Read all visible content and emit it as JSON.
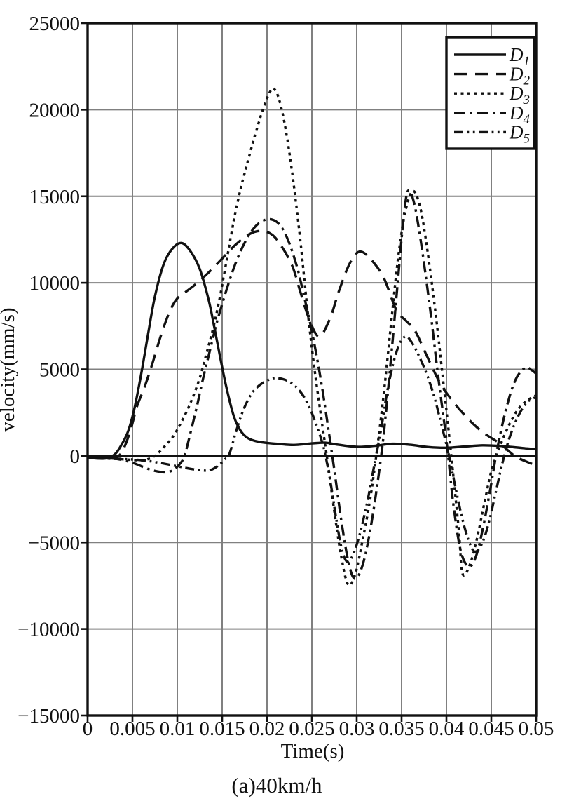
{
  "figure": {
    "background": "#ffffff",
    "accent_color": "#111111",
    "grid_color": "#808080"
  },
  "chart_data": {
    "type": "line",
    "title": "",
    "xlabel": "Time(s)",
    "ylabel": "velocity(mm/s)",
    "caption": "(a)40km/h",
    "xlim": [
      0,
      0.05
    ],
    "ylim": [
      -15000,
      25000
    ],
    "grid": true,
    "legend_position": "top-right",
    "xticks": [
      {
        "value": 0,
        "label": "0"
      },
      {
        "value": 0.005,
        "label": "0.005"
      },
      {
        "value": 0.01,
        "label": "0.01"
      },
      {
        "value": 0.015,
        "label": "0.015"
      },
      {
        "value": 0.02,
        "label": "0.02"
      },
      {
        "value": 0.025,
        "label": "0.025"
      },
      {
        "value": 0.03,
        "label": "0.03"
      },
      {
        "value": 0.035,
        "label": "0.035"
      },
      {
        "value": 0.04,
        "label": "0.04"
      },
      {
        "value": 0.045,
        "label": "0.045"
      },
      {
        "value": 0.05,
        "label": "0.05"
      }
    ],
    "yticks": [
      {
        "value": 25000,
        "label": "25000"
      },
      {
        "value": 20000,
        "label": "20000"
      },
      {
        "value": 15000,
        "label": "15000"
      },
      {
        "value": 10000,
        "label": "10000"
      },
      {
        "value": 5000,
        "label": "5000"
      },
      {
        "value": 0,
        "label": "0"
      },
      {
        "value": -5000,
        "label": "−5000"
      },
      {
        "value": -10000,
        "label": "−10000"
      },
      {
        "value": -15000,
        "label": "−15000"
      }
    ],
    "series": [
      {
        "name": "D1",
        "name_main": "D",
        "name_sub": "1",
        "style": "solid",
        "dash": "none",
        "color": "#111111",
        "points": [
          [
            0,
            -100
          ],
          [
            0.001,
            -150
          ],
          [
            0.002,
            -150
          ],
          [
            0.0028,
            0
          ],
          [
            0.0035,
            400
          ],
          [
            0.0045,
            1400
          ],
          [
            0.0052,
            2700
          ],
          [
            0.006,
            4800
          ],
          [
            0.0068,
            7200
          ],
          [
            0.0075,
            9200
          ],
          [
            0.0085,
            11100
          ],
          [
            0.0095,
            12000
          ],
          [
            0.0105,
            12300
          ],
          [
            0.0115,
            11800
          ],
          [
            0.0125,
            10800
          ],
          [
            0.0135,
            9000
          ],
          [
            0.0141,
            7500
          ],
          [
            0.0147,
            5900
          ],
          [
            0.0155,
            3900
          ],
          [
            0.0163,
            2300
          ],
          [
            0.017,
            1500
          ],
          [
            0.0178,
            1050
          ],
          [
            0.019,
            820
          ],
          [
            0.021,
            700
          ],
          [
            0.023,
            630
          ],
          [
            0.025,
            720
          ],
          [
            0.0265,
            760
          ],
          [
            0.028,
            640
          ],
          [
            0.03,
            520
          ],
          [
            0.032,
            580
          ],
          [
            0.034,
            700
          ],
          [
            0.036,
            640
          ],
          [
            0.038,
            510
          ],
          [
            0.04,
            470
          ],
          [
            0.042,
            540
          ],
          [
            0.044,
            610
          ],
          [
            0.0458,
            580
          ],
          [
            0.0475,
            500
          ],
          [
            0.049,
            430
          ],
          [
            0.05,
            380
          ]
        ]
      },
      {
        "name": "D2",
        "name_main": "D",
        "name_sub": "2",
        "style": "long-dash",
        "dash": "19 11",
        "color": "#111111",
        "points": [
          [
            0,
            -120
          ],
          [
            0.002,
            -160
          ],
          [
            0.003,
            -100
          ],
          [
            0.0038,
            200
          ],
          [
            0.0047,
            1340
          ],
          [
            0.0055,
            2850
          ],
          [
            0.0063,
            3900
          ],
          [
            0.0072,
            5300
          ],
          [
            0.0082,
            7000
          ],
          [
            0.0092,
            8400
          ],
          [
            0.01,
            9100
          ],
          [
            0.011,
            9500
          ],
          [
            0.012,
            9900
          ],
          [
            0.0135,
            10600
          ],
          [
            0.015,
            11400
          ],
          [
            0.0165,
            12200
          ],
          [
            0.018,
            12800
          ],
          [
            0.0193,
            13000
          ],
          [
            0.0205,
            12800
          ],
          [
            0.0215,
            12200
          ],
          [
            0.0228,
            11000
          ],
          [
            0.0237,
            9500
          ],
          [
            0.0247,
            7900
          ],
          [
            0.0258,
            6900
          ],
          [
            0.027,
            7900
          ],
          [
            0.028,
            9500
          ],
          [
            0.0292,
            11100
          ],
          [
            0.0303,
            11800
          ],
          [
            0.0315,
            11400
          ],
          [
            0.033,
            10300
          ],
          [
            0.0344,
            8450
          ],
          [
            0.0355,
            7800
          ],
          [
            0.0365,
            7230
          ],
          [
            0.0378,
            5800
          ],
          [
            0.0393,
            4200
          ],
          [
            0.0408,
            3100
          ],
          [
            0.0425,
            2100
          ],
          [
            0.0441,
            1350
          ],
          [
            0.046,
            700
          ],
          [
            0.0476,
            0
          ],
          [
            0.049,
            -350
          ],
          [
            0.05,
            -550
          ]
        ]
      },
      {
        "name": "D3",
        "name_main": "D",
        "name_sub": "3",
        "style": "dotted",
        "dash": "4 5.5",
        "color": "#111111",
        "points": [
          [
            0,
            -100
          ],
          [
            0.002,
            -150
          ],
          [
            0.004,
            -200
          ],
          [
            0.0055,
            -250
          ],
          [
            0.0065,
            -220
          ],
          [
            0.0075,
            0
          ],
          [
            0.0085,
            500
          ],
          [
            0.0095,
            1100
          ],
          [
            0.0105,
            2000
          ],
          [
            0.0115,
            3100
          ],
          [
            0.0125,
            4500
          ],
          [
            0.0133,
            6000
          ],
          [
            0.0141,
            7600
          ],
          [
            0.0148,
            9300
          ],
          [
            0.0156,
            11600
          ],
          [
            0.0163,
            13600
          ],
          [
            0.017,
            15300
          ],
          [
            0.0178,
            16900
          ],
          [
            0.0187,
            18600
          ],
          [
            0.0196,
            20100
          ],
          [
            0.0203,
            21000
          ],
          [
            0.0208,
            21200
          ],
          [
            0.0214,
            20500
          ],
          [
            0.0221,
            18800
          ],
          [
            0.0229,
            16000
          ],
          [
            0.0237,
            12500
          ],
          [
            0.0245,
            8500
          ],
          [
            0.0253,
            5000
          ],
          [
            0.0261,
            2000
          ],
          [
            0.0268,
            -500
          ],
          [
            0.0275,
            -3200
          ],
          [
            0.0282,
            -5600
          ],
          [
            0.029,
            -7400
          ],
          [
            0.0298,
            -6900
          ],
          [
            0.0306,
            -5000
          ],
          [
            0.0315,
            -2500
          ],
          [
            0.0323,
            500
          ],
          [
            0.0331,
            4000
          ],
          [
            0.0339,
            8000
          ],
          [
            0.0347,
            11800
          ],
          [
            0.0355,
            14300
          ],
          [
            0.0363,
            15300
          ],
          [
            0.0371,
            14300
          ],
          [
            0.0379,
            11800
          ],
          [
            0.0388,
            8200
          ],
          [
            0.0396,
            4500
          ],
          [
            0.0403,
            1200
          ],
          [
            0.0409,
            -1800
          ],
          [
            0.0414,
            -4400
          ],
          [
            0.0418,
            -6800
          ],
          [
            0.0426,
            -6300
          ],
          [
            0.0434,
            -4800
          ],
          [
            0.0442,
            -2800
          ],
          [
            0.045,
            -900
          ],
          [
            0.046,
            600
          ],
          [
            0.047,
            1800
          ],
          [
            0.048,
            2700
          ],
          [
            0.049,
            3200
          ],
          [
            0.05,
            3500
          ]
        ]
      },
      {
        "name": "D4",
        "name_main": "D",
        "name_sub": "4",
        "style": "dash-dot",
        "dash": "16 6.5 3.5 6.5",
        "color": "#111111",
        "points": [
          [
            0,
            -100
          ],
          [
            0.002,
            -130
          ],
          [
            0.0035,
            -200
          ],
          [
            0.005,
            -400
          ],
          [
            0.006,
            -600
          ],
          [
            0.007,
            -800
          ],
          [
            0.008,
            -920
          ],
          [
            0.0088,
            -950
          ],
          [
            0.0096,
            -800
          ],
          [
            0.0103,
            -450
          ],
          [
            0.0108,
            0
          ],
          [
            0.0115,
            1400
          ],
          [
            0.0122,
            2900
          ],
          [
            0.0128,
            4300
          ],
          [
            0.0135,
            5800
          ],
          [
            0.0142,
            7300
          ],
          [
            0.0149,
            8600
          ],
          [
            0.0158,
            10100
          ],
          [
            0.0167,
            11400
          ],
          [
            0.0176,
            12400
          ],
          [
            0.0186,
            13200
          ],
          [
            0.0196,
            13600
          ],
          [
            0.0206,
            13650
          ],
          [
            0.0215,
            13300
          ],
          [
            0.0224,
            12400
          ],
          [
            0.0233,
            11000
          ],
          [
            0.0239,
            9750
          ],
          [
            0.025,
            7200
          ],
          [
            0.026,
            4400
          ],
          [
            0.0268,
            1700
          ],
          [
            0.0275,
            -800
          ],
          [
            0.0283,
            -3800
          ],
          [
            0.0291,
            -6200
          ],
          [
            0.0298,
            -7100
          ],
          [
            0.0306,
            -6400
          ],
          [
            0.0314,
            -4600
          ],
          [
            0.0322,
            -2000
          ],
          [
            0.033,
            1200
          ],
          [
            0.0338,
            5500
          ],
          [
            0.0346,
            10200
          ],
          [
            0.0352,
            13600
          ],
          [
            0.0357,
            15300
          ],
          [
            0.0364,
            14600
          ],
          [
            0.0372,
            12200
          ],
          [
            0.0382,
            8400
          ],
          [
            0.0391,
            4500
          ],
          [
            0.04,
            900
          ],
          [
            0.0408,
            -2900
          ],
          [
            0.0416,
            -5500
          ],
          [
            0.0425,
            -6400
          ],
          [
            0.0433,
            -5800
          ],
          [
            0.0441,
            -4100
          ],
          [
            0.0449,
            -1900
          ],
          [
            0.0457,
            500
          ],
          [
            0.0467,
            2800
          ],
          [
            0.0477,
            4400
          ],
          [
            0.0488,
            5100
          ],
          [
            0.0495,
            4950
          ],
          [
            0.05,
            4750
          ]
        ]
      },
      {
        "name": "D5",
        "name_main": "D",
        "name_sub": "5",
        "style": "dash-dot-dot",
        "dash": "13 5.5 2.8 5.5 2.8 5.5",
        "color": "#111111",
        "points": [
          [
            0,
            -100
          ],
          [
            0.002,
            -130
          ],
          [
            0.004,
            -180
          ],
          [
            0.006,
            -250
          ],
          [
            0.008,
            -400
          ],
          [
            0.01,
            -600
          ],
          [
            0.0115,
            -750
          ],
          [
            0.013,
            -850
          ],
          [
            0.0138,
            -800
          ],
          [
            0.0146,
            -550
          ],
          [
            0.0153,
            -200
          ],
          [
            0.0158,
            100
          ],
          [
            0.0166,
            1500
          ],
          [
            0.0174,
            2700
          ],
          [
            0.0183,
            3600
          ],
          [
            0.0192,
            4100
          ],
          [
            0.0202,
            4400
          ],
          [
            0.021,
            4500
          ],
          [
            0.022,
            4400
          ],
          [
            0.023,
            4100
          ],
          [
            0.024,
            3500
          ],
          [
            0.0249,
            2600
          ],
          [
            0.0257,
            1500
          ],
          [
            0.0264,
            300
          ],
          [
            0.0271,
            -1600
          ],
          [
            0.0277,
            -3600
          ],
          [
            0.0283,
            -5300
          ],
          [
            0.0289,
            -6100
          ],
          [
            0.0296,
            -5700
          ],
          [
            0.0304,
            -4400
          ],
          [
            0.0312,
            -2600
          ],
          [
            0.0319,
            -700
          ],
          [
            0.0327,
            1500
          ],
          [
            0.0334,
            3700
          ],
          [
            0.0341,
            5400
          ],
          [
            0.0348,
            6500
          ],
          [
            0.0355,
            6900
          ],
          [
            0.0362,
            6500
          ],
          [
            0.037,
            5700
          ],
          [
            0.0379,
            4600
          ],
          [
            0.0387,
            3300
          ],
          [
            0.0394,
            1900
          ],
          [
            0.0402,
            200
          ],
          [
            0.041,
            -1800
          ],
          [
            0.0419,
            -3900
          ],
          [
            0.0428,
            -5300
          ],
          [
            0.0434,
            -5500
          ],
          [
            0.0441,
            -4900
          ],
          [
            0.0448,
            -3700
          ],
          [
            0.0455,
            -2100
          ],
          [
            0.0462,
            -500
          ],
          [
            0.047,
            1000
          ],
          [
            0.048,
            2300
          ],
          [
            0.049,
            3100
          ],
          [
            0.05,
            3400
          ]
        ]
      }
    ]
  }
}
